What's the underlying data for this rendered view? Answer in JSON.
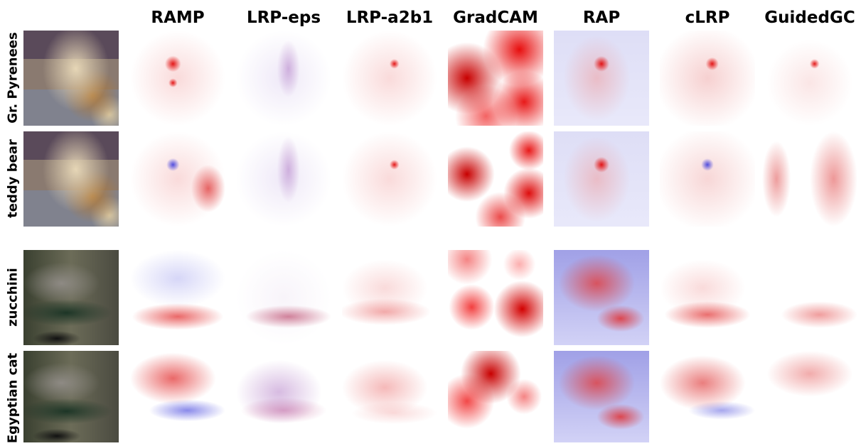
{
  "columns": [
    "RAMP",
    "LRP-eps",
    "LRP-a2b1",
    "GradCAM",
    "RAP",
    "cLRP",
    "GuidedGC"
  ],
  "rows": [
    "Gr. Pyrenees",
    "teddy bear",
    "zucchini",
    "Egyptian cat"
  ]
}
